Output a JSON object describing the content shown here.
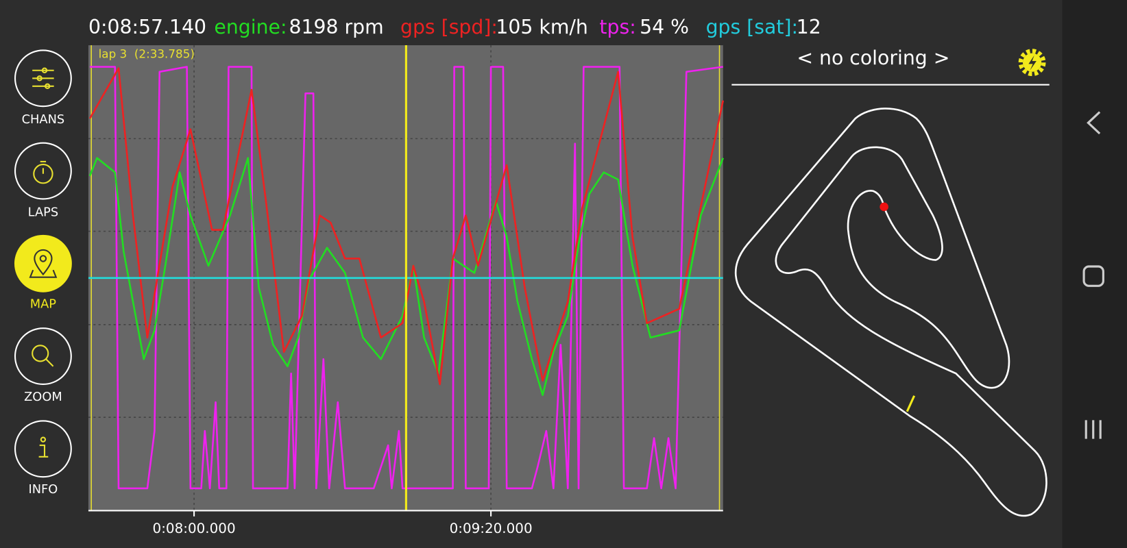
{
  "header": {
    "time": "0:08:57.140",
    "readouts": [
      {
        "label": "engine:",
        "value": "8198 rpm"
      },
      {
        "label": "gps [spd]:",
        "value": "105 km/h"
      },
      {
        "label": "tps:",
        "value": "54 %"
      },
      {
        "label": "gps [sat]:",
        "value": "12"
      }
    ]
  },
  "sidebar": {
    "buttons": [
      {
        "label": "CHANS"
      },
      {
        "label": "LAPS"
      },
      {
        "label": "MAP"
      },
      {
        "label": "ZOOM"
      },
      {
        "label": "INFO"
      }
    ]
  },
  "chart": {
    "lap_label": "lap 3  (2:33.785)",
    "x_tick_labels": [
      "0:08:00.000",
      "0:09:20.000"
    ]
  },
  "map": {
    "title": "< no coloring >"
  }
}
